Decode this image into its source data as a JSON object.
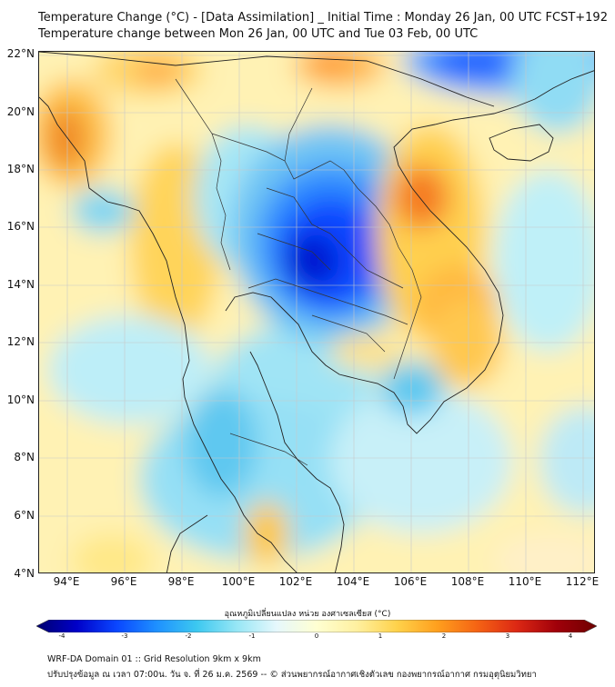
{
  "header": {
    "title_line1": "Temperature Change (°C) - [Data Assimilation] _ Initial Time : Monday 26 Jan, 00 UTC FCST+192",
    "title_line2": "Temperature change between Mon 26 Jan, 00 UTC and Tue 03 Feb, 00 UTC"
  },
  "map": {
    "lat_labels": [
      "22°N",
      "20°N",
      "18°N",
      "16°N",
      "14°N",
      "12°N",
      "10°N",
      "8°N",
      "6°N",
      "4°N"
    ],
    "lon_labels": [
      "94°E",
      "96°E",
      "98°E",
      "100°E",
      "102°E",
      "104°E",
      "106°E",
      "108°E",
      "110°E",
      "112°E"
    ],
    "lat_range": [
      4,
      22
    ],
    "lon_range": [
      93,
      112.5
    ],
    "feature_colors": {
      "coastline": "#222222",
      "borders": "#333333",
      "gridlines": "#cccccc"
    }
  },
  "colorbar": {
    "title": "อุณหภูมิเปลี่ยนแปลง หน่วย องศาเซลเซียส (°C)",
    "ticks": [
      "-4",
      "-3",
      "-2",
      "-1",
      "0",
      "1",
      "2",
      "3",
      "4"
    ],
    "range": [
      -4,
      4
    ],
    "colors": [
      "#00006e",
      "#0000c8",
      "#0a46ff",
      "#1e90ff",
      "#3cc8f0",
      "#96e6f5",
      "#e6f8fc",
      "#ffffd2",
      "#fff0a0",
      "#ffd24b",
      "#ffa01e",
      "#f56414",
      "#dc2814",
      "#a0000a",
      "#6e0000"
    ]
  },
  "footer": {
    "line1": "WRF-DA Domain 01 :: Grid Resolution 9km x 9km",
    "line2": "ปรับปรุงข้อมูล ณ เวลา 07:00น. วัน จ. ที่ 26 ม.ค. 2569 -- © ส่วนพยากรณ์อากาศเชิงตัวเลข กองพยากรณ์อากาศ กรมอุตุนิยมวิทยา"
  }
}
